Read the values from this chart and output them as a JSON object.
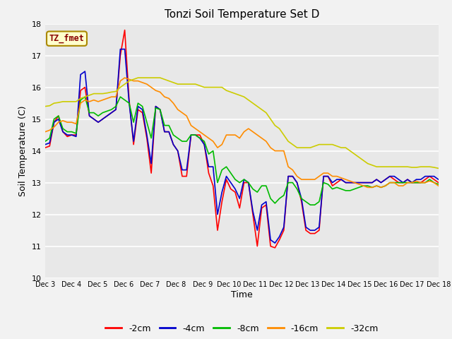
{
  "title": "Tonzi Soil Temperature Set D",
  "xlabel": "Time",
  "ylabel": "Soil Temperature (C)",
  "ylim": [
    10.0,
    18.0
  ],
  "yticks": [
    10.0,
    11.0,
    12.0,
    13.0,
    14.0,
    15.0,
    16.0,
    17.0,
    18.0
  ],
  "xtick_labels": [
    "Dec 3",
    "Dec 4",
    "Dec 5",
    "Dec 6",
    "Dec 7",
    "Dec 8",
    "Dec 9",
    "Dec 10",
    "Dec 11",
    "Dec 12",
    "Dec 13",
    "Dec 14",
    "Dec 15",
    "Dec 16",
    "Dec 17",
    "Dec 18"
  ],
  "legend_labels": [
    "-2cm",
    "-4cm",
    "-8cm",
    "-16cm",
    "-32cm"
  ],
  "legend_colors": [
    "#FF0000",
    "#0000CC",
    "#00BB00",
    "#FF8C00",
    "#CCCC00"
  ],
  "annotation_text": "TZ_fmet",
  "annotation_bg": "#FFFFCC",
  "annotation_border": "#AA8800",
  "annotation_text_color": "#880000",
  "plot_bg": "#E8E8E8",
  "fig_bg": "#F2F2F2",
  "grid_color": "#FFFFFF",
  "n_days": 15,
  "series_neg2": [
    14.1,
    14.15,
    14.9,
    15.1,
    14.6,
    14.45,
    14.5,
    14.5,
    15.9,
    16.0,
    15.1,
    15.0,
    14.9,
    15.0,
    15.1,
    15.2,
    15.3,
    17.0,
    17.8,
    15.6,
    14.2,
    15.3,
    15.2,
    14.4,
    13.3,
    15.4,
    15.3,
    14.6,
    14.6,
    14.2,
    14.0,
    13.2,
    13.2,
    14.5,
    14.5,
    14.5,
    14.2,
    13.3,
    12.9,
    11.5,
    12.4,
    13.1,
    12.8,
    12.7,
    12.2,
    13.0,
    13.0,
    12.0,
    11.0,
    12.2,
    12.3,
    11.0,
    10.95,
    11.2,
    11.5,
    13.2,
    13.2,
    13.0,
    12.4,
    11.5,
    11.4,
    11.4,
    11.5,
    13.2,
    13.2,
    12.9,
    13.0,
    13.1,
    13.0,
    13.0,
    13.0,
    13.0,
    13.0,
    13.0,
    13.0,
    13.1,
    13.0,
    13.1,
    13.2,
    13.1,
    13.0,
    13.0,
    13.1,
    13.0,
    13.0,
    13.0,
    13.1,
    13.2,
    13.1,
    13.0
  ],
  "series_neg4": [
    14.2,
    14.25,
    14.9,
    15.0,
    14.6,
    14.5,
    14.5,
    14.45,
    16.4,
    16.5,
    15.1,
    15.0,
    14.9,
    15.0,
    15.1,
    15.2,
    15.3,
    17.2,
    17.2,
    15.5,
    14.3,
    15.4,
    15.3,
    14.5,
    13.6,
    15.4,
    15.3,
    14.6,
    14.6,
    14.2,
    14.0,
    13.4,
    13.4,
    14.5,
    14.5,
    14.4,
    14.2,
    13.5,
    13.5,
    12.0,
    12.7,
    13.2,
    13.0,
    12.8,
    12.5,
    13.1,
    13.0,
    12.1,
    11.5,
    12.3,
    12.4,
    11.2,
    11.1,
    11.3,
    11.6,
    13.2,
    13.2,
    13.0,
    12.5,
    11.6,
    11.5,
    11.5,
    11.6,
    13.2,
    13.2,
    13.0,
    13.1,
    13.1,
    13.0,
    13.0,
    13.0,
    13.0,
    13.0,
    13.0,
    13.0,
    13.1,
    13.0,
    13.1,
    13.2,
    13.2,
    13.1,
    13.0,
    13.1,
    13.0,
    13.1,
    13.1,
    13.2,
    13.2,
    13.2,
    13.1
  ],
  "series_neg8": [
    14.3,
    14.4,
    15.0,
    15.1,
    14.7,
    14.6,
    14.6,
    14.55,
    15.6,
    15.7,
    15.2,
    15.2,
    15.1,
    15.2,
    15.25,
    15.3,
    15.4,
    15.7,
    15.6,
    15.5,
    14.9,
    15.5,
    15.4,
    14.9,
    14.4,
    15.35,
    15.3,
    14.8,
    14.8,
    14.5,
    14.4,
    14.3,
    14.3,
    14.5,
    14.5,
    14.4,
    14.3,
    13.9,
    14.0,
    13.0,
    13.4,
    13.5,
    13.3,
    13.1,
    13.0,
    13.1,
    13.0,
    12.8,
    12.7,
    12.9,
    12.9,
    12.5,
    12.35,
    12.5,
    12.6,
    13.0,
    13.0,
    12.8,
    12.5,
    12.4,
    12.3,
    12.3,
    12.4,
    13.0,
    12.95,
    12.8,
    12.85,
    12.8,
    12.75,
    12.75,
    12.8,
    12.85,
    12.9,
    12.9,
    12.85,
    12.9,
    12.85,
    12.9,
    13.0,
    13.0,
    13.0,
    13.0,
    13.0,
    13.0,
    13.0,
    13.0,
    13.0,
    13.1,
    13.0,
    12.95
  ],
  "series_neg16": [
    14.6,
    14.65,
    14.75,
    14.9,
    14.95,
    14.9,
    14.9,
    14.85,
    15.5,
    15.6,
    15.55,
    15.6,
    15.55,
    15.6,
    15.65,
    15.7,
    15.7,
    16.2,
    16.3,
    16.25,
    16.2,
    16.2,
    16.15,
    16.1,
    16.0,
    15.9,
    15.85,
    15.7,
    15.65,
    15.5,
    15.3,
    15.2,
    15.1,
    14.8,
    14.7,
    14.6,
    14.5,
    14.4,
    14.3,
    14.1,
    14.2,
    14.5,
    14.5,
    14.5,
    14.4,
    14.6,
    14.7,
    14.6,
    14.5,
    14.4,
    14.3,
    14.1,
    14.0,
    14.0,
    14.0,
    13.5,
    13.4,
    13.2,
    13.1,
    13.1,
    13.1,
    13.1,
    13.2,
    13.3,
    13.3,
    13.2,
    13.2,
    13.15,
    13.1,
    13.05,
    13.0,
    12.95,
    12.9,
    12.85,
    12.85,
    12.9,
    12.85,
    12.9,
    13.0,
    13.0,
    12.9,
    12.9,
    13.0,
    13.0,
    13.05,
    13.0,
    13.0,
    13.05,
    13.0,
    12.9
  ],
  "series_neg32": [
    15.4,
    15.42,
    15.5,
    15.52,
    15.55,
    15.55,
    15.55,
    15.55,
    15.65,
    15.7,
    15.75,
    15.8,
    15.8,
    15.8,
    15.82,
    15.85,
    15.87,
    16.0,
    16.1,
    16.2,
    16.25,
    16.3,
    16.3,
    16.3,
    16.3,
    16.3,
    16.3,
    16.25,
    16.2,
    16.15,
    16.1,
    16.1,
    16.1,
    16.1,
    16.1,
    16.05,
    16.0,
    16.0,
    16.0,
    16.0,
    16.0,
    15.9,
    15.85,
    15.8,
    15.75,
    15.7,
    15.6,
    15.5,
    15.4,
    15.3,
    15.2,
    15.0,
    14.8,
    14.7,
    14.5,
    14.3,
    14.2,
    14.1,
    14.1,
    14.1,
    14.1,
    14.15,
    14.2,
    14.2,
    14.2,
    14.2,
    14.15,
    14.1,
    14.1,
    14.0,
    13.9,
    13.8,
    13.7,
    13.6,
    13.55,
    13.5,
    13.5,
    13.5,
    13.5,
    13.5,
    13.5,
    13.5,
    13.5,
    13.48,
    13.48,
    13.5,
    13.5,
    13.5,
    13.48,
    13.45
  ]
}
